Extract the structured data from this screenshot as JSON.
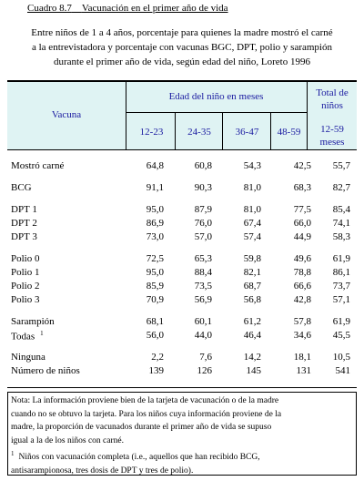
{
  "header": {
    "title": "Cuadro 8.7",
    "caption": "Vacunación en el primer año de vida",
    "subtitle": [
      "Entre niños de 1 a 4 años, porcentaje para quienes la madre mostró el carné",
      "a la entrevistadora y porcentaje con vacunas BGC, DPT, polio y sarampión",
      "durante el primer año de vida, según edad del niño, Loreto 1996"
    ]
  },
  "table": {
    "col_label": "Vacuna",
    "group_label": "Edad del niño en meses",
    "age_cols": [
      "12-23",
      "24-35",
      "36-47",
      "48-59"
    ],
    "total_label": "Total de niños",
    "total_sub": "12-59 meses",
    "groups": [
      [
        {
          "label": "Mostró carné",
          "values": [
            "64,8",
            "60,8",
            "54,3",
            "42,5",
            "55,7"
          ]
        }
      ],
      [
        {
          "label": "BCG",
          "values": [
            "91,1",
            "90,3",
            "81,0",
            "68,3",
            "82,7"
          ]
        }
      ],
      [
        {
          "label": "DPT 1",
          "values": [
            "95,0",
            "87,9",
            "81,0",
            "77,5",
            "85,4"
          ]
        },
        {
          "label": "DPT 2",
          "values": [
            "86,9",
            "76,0",
            "67,4",
            "66,0",
            "74,1"
          ]
        },
        {
          "label": "DPT 3",
          "values": [
            "73,0",
            "57,0",
            "57,4",
            "44,9",
            "58,3"
          ]
        }
      ],
      [
        {
          "label": "Polio 0",
          "values": [
            "72,5",
            "65,3",
            "59,8",
            "49,6",
            "61,9"
          ]
        },
        {
          "label": "Polio 1",
          "values": [
            "95,0",
            "88,4",
            "82,1",
            "78,8",
            "86,1"
          ]
        },
        {
          "label": "Polio 2",
          "values": [
            "85,9",
            "73,5",
            "68,7",
            "66,6",
            "73,7"
          ]
        },
        {
          "label": "Polio 3",
          "values": [
            "70,9",
            "56,9",
            "56,8",
            "42,8",
            "57,1"
          ]
        }
      ],
      [
        {
          "label": "Sarampión",
          "values": [
            "68,1",
            "60,1",
            "61,2",
            "57,8",
            "61,9"
          ]
        },
        {
          "label": "Todas",
          "note": "1",
          "values": [
            "56,0",
            "44,0",
            "46,4",
            "34,6",
            "45,5"
          ]
        }
      ],
      [
        {
          "label": "Ninguna",
          "values": [
            "2,2",
            "7,6",
            "14,2",
            "18,1",
            "10,5"
          ]
        },
        {
          "label": "Número de niños",
          "values": [
            "139",
            "126",
            "145",
            "131",
            "541"
          ]
        }
      ]
    ]
  },
  "notes": {
    "lines": [
      "Nota: La información proviene bien de la tarjeta de vacunación o de la madre",
      "cuando no se obtuvo la tarjeta. Para los niños cuya información proviene de la",
      "madre, la proporción de vacunados durante el primer año de vida se supuso",
      "igual a la de los niños con carné."
    ],
    "footnote_mark": "1",
    "footnote": [
      "Niños con vacunación completa (i.e., aquellos que han recibido BCG,",
      "antisarampionosa, tres dosis de DPT y tres de polio)."
    ]
  }
}
